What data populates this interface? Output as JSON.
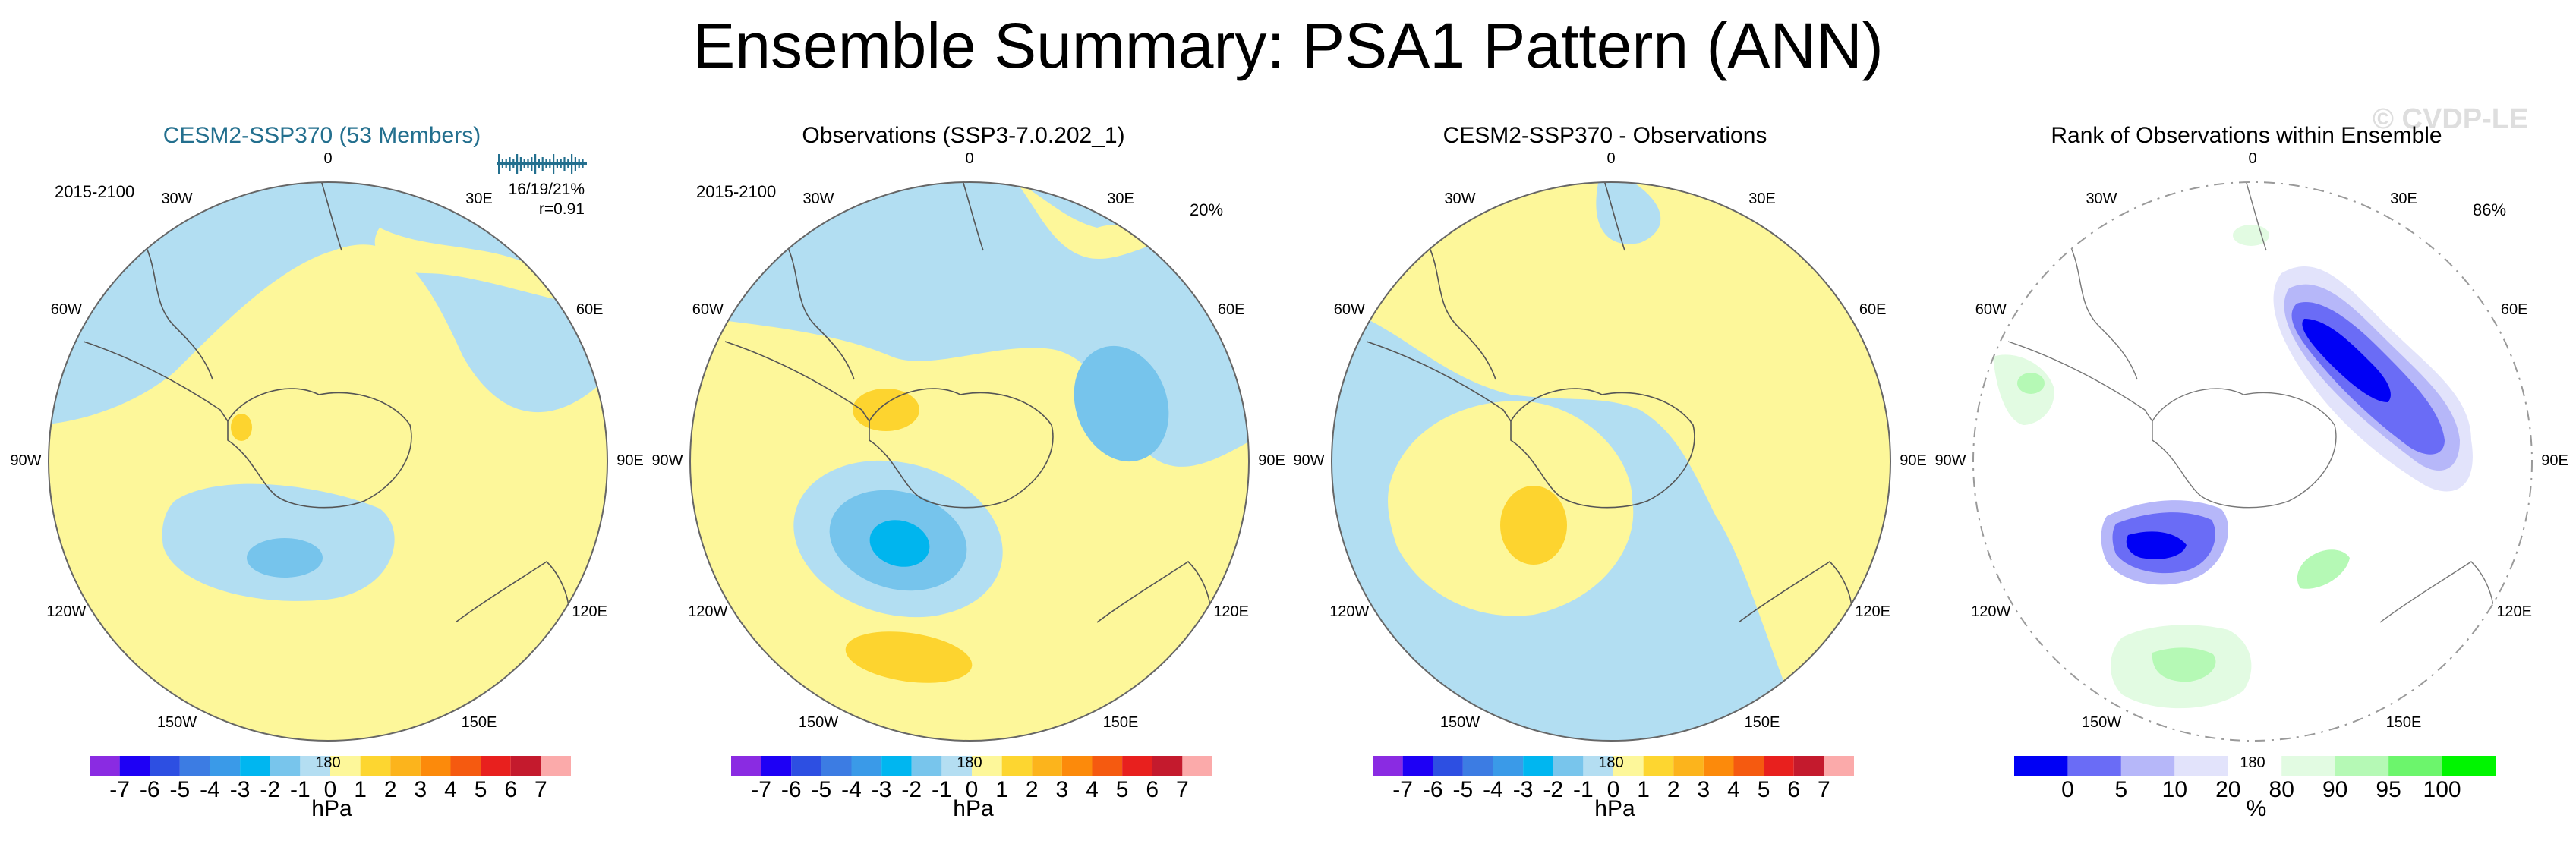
{
  "title": "Ensemble Summary: PSA1 Pattern (ANN)",
  "watermark": "© CVDP-LE",
  "lon_labels": [
    "0",
    "30E",
    "60E",
    "90E",
    "120E",
    "150E",
    "180",
    "150W",
    "120W",
    "90W",
    "60W",
    "30W"
  ],
  "colors": {
    "ocean_blue": "#b2def2",
    "land_yellow": "#fdf79a",
    "mid_blue": "#76c4ec",
    "deep_blue": "#00b5ee",
    "orange_yellow": "#fdd42f",
    "title_teal": "#236f8e",
    "rank_blue": "#0000f5",
    "rank_green": "#00f500"
  },
  "chart_data": [
    {
      "type": "heatmap",
      "name": "cesm2",
      "title": "CESM2-SSP370 (53 Members)",
      "years": "2015-2100",
      "stats_line1": "16/19/21%",
      "stats_line2": "r=0.91",
      "colorbar": {
        "ticks": [
          "-7",
          "-6",
          "-5",
          "-4",
          "-3",
          "-2",
          "-1",
          "0",
          "1",
          "2",
          "3",
          "4",
          "5",
          "6",
          "7"
        ],
        "unit": "hPa",
        "colors": [
          "#8a2be2",
          "#1e00f5",
          "#2d4fe2",
          "#3c7ce3",
          "#3a9ae8",
          "#00b6f0",
          "#78c5ec",
          "#b4def2",
          "#fdf79a",
          "#fdd630",
          "#fcb41c",
          "#fc8a0b",
          "#f55a10",
          "#e8201e",
          "#c41a2d",
          "#fbaaaa"
        ]
      }
    },
    {
      "type": "heatmap",
      "name": "obs",
      "title": "Observations (SSP3-7.0.202_1)",
      "years": "2015-2100",
      "percent": "20%",
      "colorbar": {
        "ticks": [
          "-7",
          "-6",
          "-5",
          "-4",
          "-3",
          "-2",
          "-1",
          "0",
          "1",
          "2",
          "3",
          "4",
          "5",
          "6",
          "7"
        ],
        "unit": "hPa",
        "colors": [
          "#8a2be2",
          "#1e00f5",
          "#2d4fe2",
          "#3c7ce3",
          "#3a9ae8",
          "#00b6f0",
          "#78c5ec",
          "#b4def2",
          "#fdf79a",
          "#fdd630",
          "#fcb41c",
          "#fc8a0b",
          "#f55a10",
          "#e8201e",
          "#c41a2d",
          "#fbaaaa"
        ]
      }
    },
    {
      "type": "heatmap",
      "name": "diff",
      "title": "CESM2-SSP370 - Observations",
      "colorbar": {
        "ticks": [
          "-7",
          "-6",
          "-5",
          "-4",
          "-3",
          "-2",
          "-1",
          "0",
          "1",
          "2",
          "3",
          "4",
          "5",
          "6",
          "7"
        ],
        "unit": "hPa",
        "colors": [
          "#8a2be2",
          "#1e00f5",
          "#2d4fe2",
          "#3c7ce3",
          "#3a9ae8",
          "#00b6f0",
          "#78c5ec",
          "#b4def2",
          "#fdf79a",
          "#fdd630",
          "#fcb41c",
          "#fc8a0b",
          "#f55a10",
          "#e8201e",
          "#c41a2d",
          "#fbaaaa"
        ]
      }
    },
    {
      "type": "heatmap",
      "name": "rank",
      "title": "Rank of Observations within Ensemble",
      "percent": "86%",
      "colorbar": {
        "ticks": [
          "0",
          "5",
          "10",
          "20",
          "80",
          "90",
          "95",
          "100"
        ],
        "unit": "%",
        "colors": [
          "#0000f5",
          "#6a6cf6",
          "#b6b7f9",
          "#e2e3fb",
          "#ffffff",
          "#e2fbe2",
          "#b5f9b5",
          "#6cf56c",
          "#00f500"
        ]
      }
    }
  ]
}
